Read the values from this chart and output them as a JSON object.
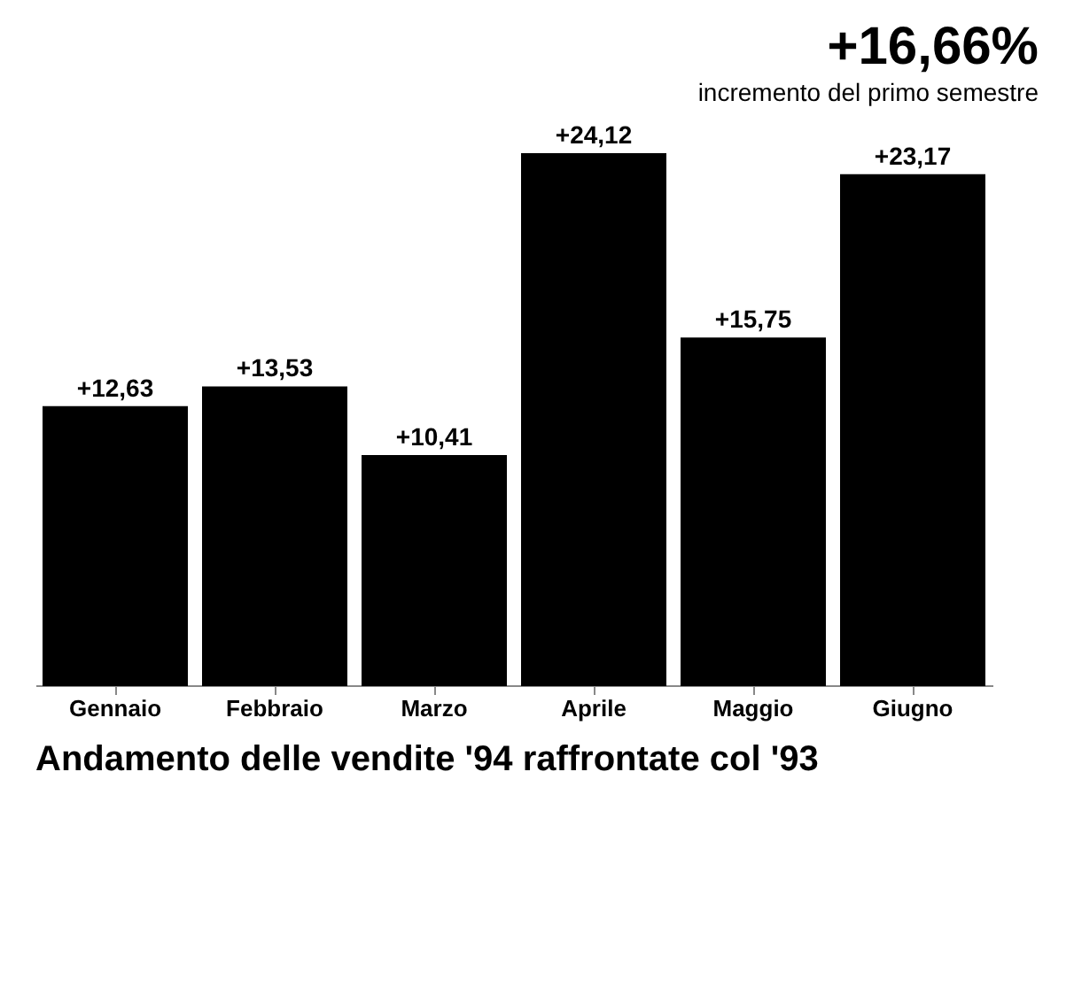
{
  "chart_data": {
    "type": "bar",
    "title": "Andamento delle vendite '94 raffrontate col '93",
    "annotations": [
      "+16,66%",
      "incremento del primo semestre"
    ],
    "categories": [
      "Gennaio",
      "Febbraio",
      "Marzo",
      "Aprile",
      "Maggio",
      "Giugno"
    ],
    "values": [
      12.63,
      13.53,
      10.41,
      24.12,
      15.75,
      23.17
    ],
    "value_labels": [
      "+12,63",
      "+13,53",
      "+10,41",
      "+24,12",
      "+15,75",
      "+23,17"
    ],
    "color": "#000000"
  }
}
